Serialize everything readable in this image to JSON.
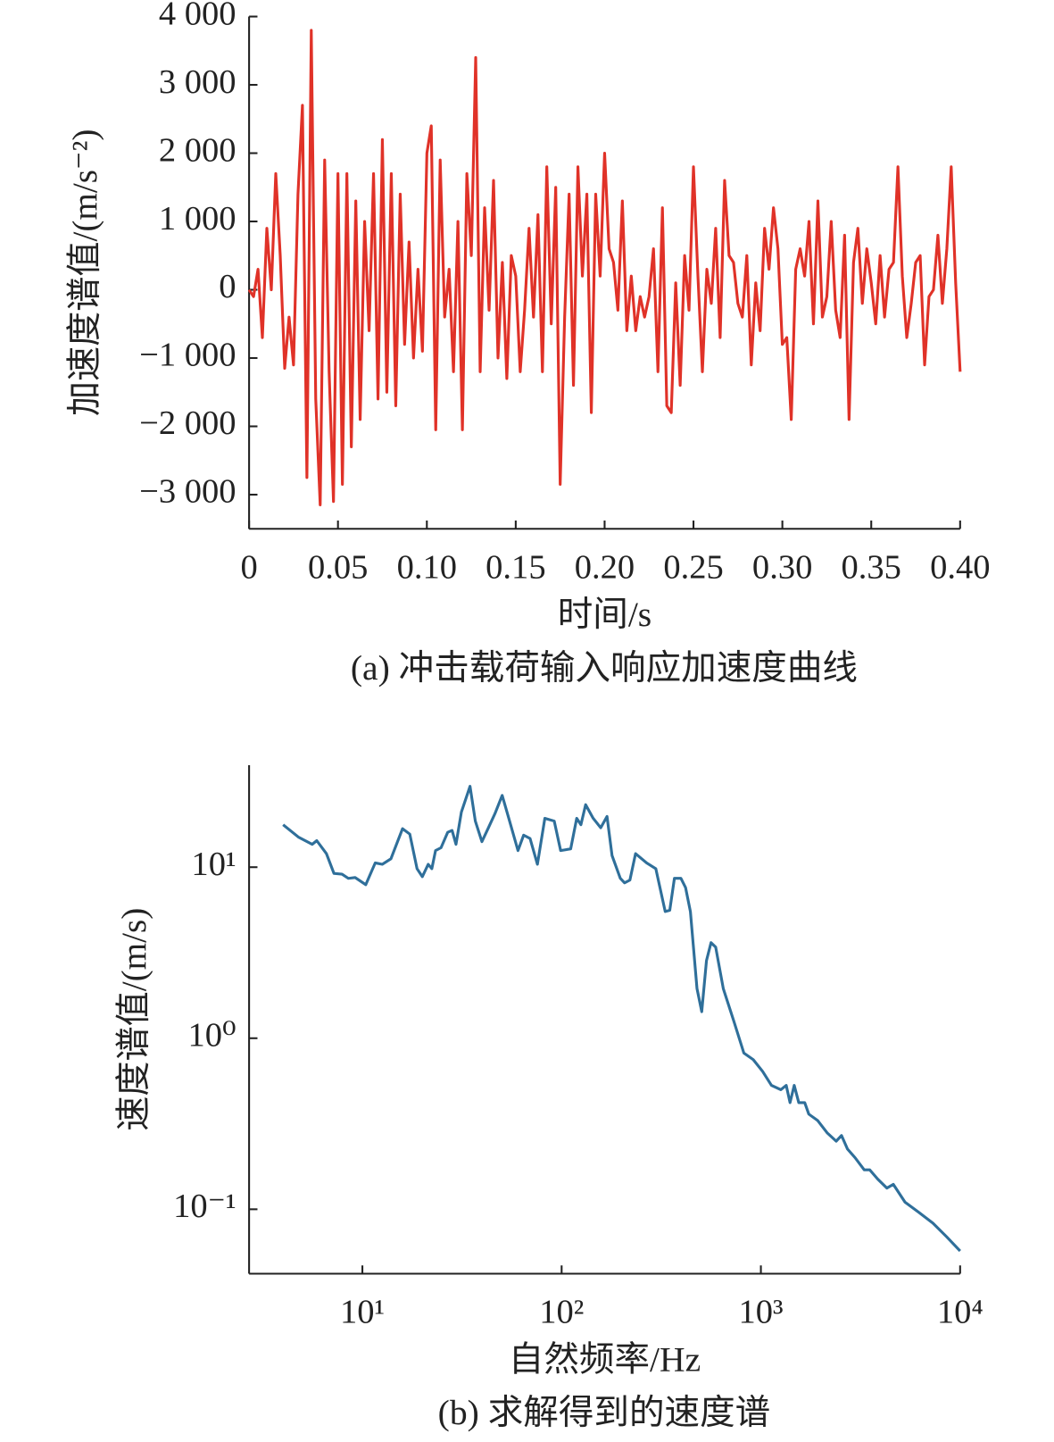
{
  "chart_data": [
    {
      "type": "line",
      "title": "(a) 冲击载荷输入响应加速度曲线",
      "xlabel": "时间/s",
      "ylabel": "加速度谱值/(m/s⁻²)",
      "color": "#e03228",
      "x": [
        0,
        0.0025,
        0.005,
        0.0075,
        0.01,
        0.0125,
        0.015,
        0.0175,
        0.02,
        0.0225,
        0.025,
        0.0275,
        0.03,
        0.0325,
        0.035,
        0.0375,
        0.04,
        0.0425,
        0.045,
        0.0475,
        0.05,
        0.0525,
        0.055,
        0.0575,
        0.06,
        0.0625,
        0.065,
        0.0675,
        0.07,
        0.0725,
        0.075,
        0.0775,
        0.08,
        0.0825,
        0.085,
        0.0875,
        0.09,
        0.0925,
        0.095,
        0.0975,
        0.1,
        0.1025,
        0.105,
        0.1075,
        0.11,
        0.1125,
        0.115,
        0.1175,
        0.12,
        0.1225,
        0.125,
        0.1275,
        0.13,
        0.1325,
        0.135,
        0.1375,
        0.14,
        0.1425,
        0.145,
        0.1475,
        0.15,
        0.1525,
        0.155,
        0.1575,
        0.16,
        0.1625,
        0.165,
        0.1675,
        0.17,
        0.1725,
        0.175,
        0.1775,
        0.18,
        0.1825,
        0.185,
        0.1875,
        0.19,
        0.1925,
        0.195,
        0.1975,
        0.2,
        0.2025,
        0.205,
        0.2075,
        0.21,
        0.2125,
        0.215,
        0.2175,
        0.22,
        0.2225,
        0.225,
        0.2275,
        0.23,
        0.2325,
        0.235,
        0.2375,
        0.24,
        0.2425,
        0.245,
        0.2475,
        0.25,
        0.2525,
        0.255,
        0.2575,
        0.26,
        0.2625,
        0.265,
        0.2675,
        0.27,
        0.2725,
        0.275,
        0.2775,
        0.28,
        0.2825,
        0.285,
        0.2875,
        0.29,
        0.2925,
        0.295,
        0.2975,
        0.3,
        0.3025,
        0.305,
        0.3075,
        0.31,
        0.3125,
        0.315,
        0.3175,
        0.32,
        0.3225,
        0.325,
        0.3275,
        0.33,
        0.3325,
        0.335,
        0.3375,
        0.34,
        0.3425,
        0.345,
        0.3475,
        0.35,
        0.3525,
        0.355,
        0.3575,
        0.36,
        0.3625,
        0.365,
        0.3675,
        0.37,
        0.3725,
        0.375,
        0.3775,
        0.38,
        0.3825,
        0.385,
        0.3875,
        0.39,
        0.3925,
        0.395,
        0.3975,
        0.4
      ],
      "values": [
        0,
        -100,
        300,
        -700,
        900,
        0,
        1700,
        500,
        -1150,
        -400,
        -1100,
        1400,
        2700,
        -2750,
        3800,
        -1600,
        -3150,
        1900,
        -1200,
        -3100,
        1700,
        -2850,
        1700,
        -2300,
        1300,
        -1900,
        1000,
        -600,
        1700,
        -1600,
        2200,
        -1500,
        1700,
        -1700,
        1400,
        -800,
        700,
        -1000,
        300,
        -900,
        2000,
        2400,
        -2050,
        1900,
        -400,
        300,
        -1200,
        1000,
        -2050,
        1700,
        500,
        3400,
        -1200,
        1200,
        -300,
        1600,
        -1000,
        400,
        -1300,
        500,
        200,
        -1200,
        -300,
        900,
        -400,
        1100,
        -1200,
        1800,
        -500,
        1500,
        -2850,
        -400,
        1400,
        -1400,
        1800,
        200,
        1400,
        -1800,
        1400,
        200,
        2000,
        600,
        400,
        -300,
        1300,
        -600,
        200,
        -600,
        -100,
        -400,
        -100,
        600,
        -1200,
        1200,
        -1700,
        -1800,
        100,
        -1400,
        500,
        -300,
        1800,
        200,
        -1200,
        300,
        -200,
        900,
        -700,
        1600,
        500,
        400,
        -200,
        -400,
        500,
        -1100,
        100,
        -600,
        900,
        300,
        1200,
        600,
        -800,
        -700,
        -1900,
        300,
        600,
        200,
        1000,
        -500,
        1300,
        -400,
        -100,
        1000,
        -300,
        -700,
        800,
        -1900,
        400,
        900,
        -200,
        600,
        100,
        -500,
        500,
        -400,
        300,
        400,
        1800,
        200,
        -700,
        -200,
        400,
        500,
        -1100,
        -100,
        0,
        800,
        -200,
        600,
        1800,
        100,
        -1200
      ],
      "xlim": [
        0,
        0.4
      ],
      "ylim": [
        -3500,
        4000
      ],
      "xticks": [
        0,
        0.05,
        {
          "value": 0.1,
          "label": "0.10"
        },
        0.15,
        {
          "value": 0.2,
          "label": "0.20"
        },
        0.25,
        {
          "value": 0.3,
          "label": "0.30"
        },
        0.35,
        {
          "value": 0.4,
          "label": "0.40"
        }
      ],
      "yticks": [
        {
          "value": -3000,
          "label": "−3 000"
        },
        {
          "value": -2000,
          "label": "−2 000"
        },
        {
          "value": -1000,
          "label": "−1 000"
        },
        0,
        {
          "value": 1000,
          "label": "1 000"
        },
        {
          "value": 2000,
          "label": "2 000"
        },
        {
          "value": 3000,
          "label": "3 000"
        },
        {
          "value": 4000,
          "label": "4 000"
        }
      ]
    },
    {
      "type": "line",
      "title": "(b) 求解得到的速度谱",
      "xlabel": "自然频率/Hz",
      "ylabel": "速度谱值/(m/s)",
      "color": "#2f6f9a",
      "xscale": "log",
      "yscale": "log",
      "x": [
        4.0,
        4.77,
        5.6,
        5.9,
        6.6,
        7.2,
        7.9,
        8.5,
        9.2,
        10.4,
        11.6,
        12.6,
        13.9,
        15.9,
        17.3,
        18.8,
        20.0,
        21.4,
        22.3,
        23.3,
        24.8,
        26.8,
        28.2,
        29.5,
        31.4,
        34.7,
        36.9,
        39.8,
        42.9,
        46.2,
        50.3,
        54.3,
        60.4,
        64.5,
        69.4,
        75.6,
        82.4,
        91.8,
        98.9,
        111,
        119,
        125,
        132,
        144,
        157,
        169,
        179,
        197,
        207,
        220,
        235,
        267,
        297,
        331,
        349,
        368,
        397,
        419,
        443,
        478,
        505,
        533,
        562,
        593,
        648,
        736,
        821,
        915,
        1020,
        1130,
        1260,
        1340,
        1400,
        1470,
        1550,
        1660,
        1740,
        1930,
        2150,
        2390,
        2540,
        2720,
        2970,
        3300,
        3520,
        3860,
        4290,
        4620,
        5290,
        6200,
        7300,
        8560,
        10000
      ],
      "values": [
        17.7,
        15.0,
        13.6,
        14.3,
        12.0,
        9.2,
        9.1,
        8.6,
        8.7,
        7.9,
        10.6,
        10.4,
        11.2,
        16.8,
        15.6,
        9.8,
        8.8,
        10.4,
        9.8,
        12.5,
        13.0,
        16.0,
        16.4,
        13.6,
        21.0,
        29.7,
        18.6,
        14.1,
        17.0,
        20.5,
        26.3,
        19.3,
        12.5,
        15.4,
        14.7,
        10.4,
        19.3,
        18.6,
        12.5,
        12.8,
        19.3,
        17.7,
        23.2,
        19.3,
        17.0,
        19.8,
        11.7,
        8.6,
        8.1,
        8.4,
        12.0,
        10.6,
        9.8,
        5.5,
        5.6,
        8.6,
        8.6,
        7.6,
        5.5,
        1.95,
        1.43,
        2.84,
        3.62,
        3.41,
        1.95,
        1.23,
        0.82,
        0.75,
        0.64,
        0.53,
        0.5,
        0.53,
        0.42,
        0.53,
        0.42,
        0.42,
        0.36,
        0.33,
        0.28,
        0.25,
        0.27,
        0.225,
        0.2,
        0.17,
        0.17,
        0.15,
        0.133,
        0.14,
        0.11,
        0.096,
        0.083,
        0.069,
        0.057
      ],
      "xlim": [
        2.7,
        10000
      ],
      "ylim": [
        0.042,
        39.5
      ],
      "xticks": [
        {
          "value": 10,
          "label": "10¹"
        },
        {
          "value": 100,
          "label": "10²"
        },
        {
          "value": 1000,
          "label": "10³"
        },
        {
          "value": 10000,
          "label": "10⁴"
        }
      ],
      "yticks": [
        {
          "value": 0.1,
          "label": "10⁻¹"
        },
        {
          "value": 1,
          "label": "10⁰"
        },
        {
          "value": 10,
          "label": "10¹"
        }
      ]
    }
  ]
}
